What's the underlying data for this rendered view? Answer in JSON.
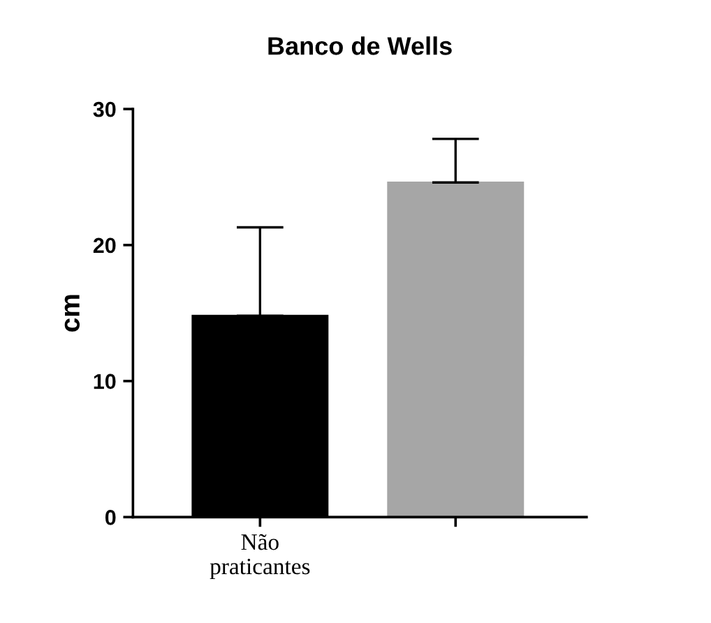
{
  "chart_data": {
    "type": "bar",
    "title": "Banco de Wells",
    "ylabel": "cm",
    "categories": [
      "Não praticantes",
      null
    ],
    "values": [
      14.8,
      24.6
    ],
    "colors": [
      "#000000",
      "#a6a6a6"
    ],
    "errors": [
      [
        14.8,
        21.3
      ],
      [
        24.6,
        27.8
      ]
    ],
    "ylim": [
      0,
      30
    ],
    "yticks": [
      0,
      10,
      20,
      30
    ],
    "grid": false
  }
}
